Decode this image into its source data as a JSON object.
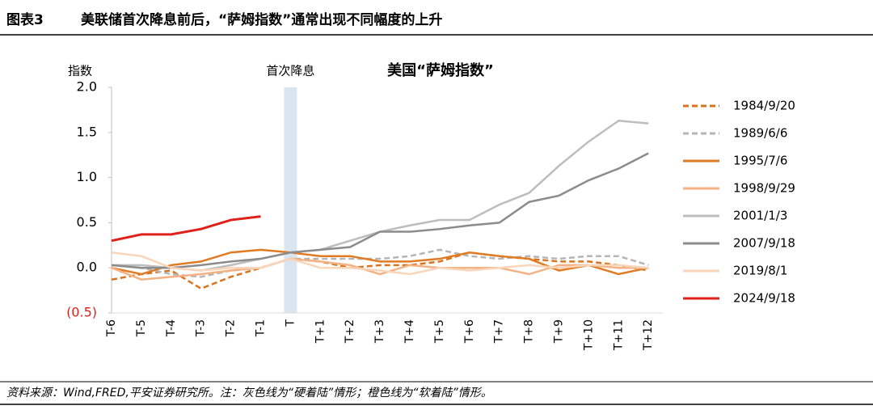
{
  "header": {
    "label": "图表3",
    "title": "美联储首次降息前后，“萨姆指数”通常出现不同幅度的上升"
  },
  "footer": "资料来源：Wind,FRED,平安证券研究所。注：灰色线为“硬着陆”情形；橙色线为“软着陆”情形。",
  "chart_data": {
    "type": "line",
    "title": "美国“萨姆指数”",
    "y_axis_label": "指数",
    "annotation": "首次降息",
    "annotation_category": "T",
    "categories": [
      "T-6",
      "T-5",
      "T-4",
      "T-3",
      "T-2",
      "T-1",
      "T",
      "T+1",
      "T+2",
      "T+3",
      "T+4",
      "T+5",
      "T+6",
      "T+7",
      "T+8",
      "T+9",
      "T+10",
      "T+11",
      "T+12"
    ],
    "ylim": [
      -0.5,
      2.0
    ],
    "yticks": [
      {
        "value": -0.5,
        "label": "(0.5)"
      },
      {
        "value": 0,
        "label": "0.0"
      },
      0.5,
      {
        "value": 1,
        "label": "1.0"
      },
      1.5,
      {
        "value": 2,
        "label": "2.0"
      }
    ],
    "legend": "right",
    "series": [
      {
        "name": "1984/9/20",
        "color": "#d9731e",
        "dashed": true,
        "values": [
          -0.13,
          -0.07,
          -0.03,
          -0.23,
          -0.1,
          0.0,
          0.1,
          0.07,
          0.0,
          0.03,
          0.03,
          0.07,
          0.17,
          0.13,
          0.1,
          0.07,
          0.07,
          0.03,
          -0.03
        ]
      },
      {
        "name": "1989/6/6",
        "color": "#b5b5b5",
        "dashed": true,
        "values": [
          0.03,
          0.0,
          -0.07,
          -0.1,
          -0.03,
          0.0,
          0.1,
          0.1,
          0.1,
          0.1,
          0.13,
          0.2,
          0.13,
          0.1,
          0.13,
          0.1,
          0.13,
          0.13,
          0.03
        ]
      },
      {
        "name": "1995/7/6",
        "color": "#e07b24",
        "values": [
          0.0,
          -0.07,
          0.03,
          0.07,
          0.17,
          0.2,
          0.17,
          0.13,
          0.13,
          0.07,
          0.07,
          0.1,
          0.17,
          0.13,
          0.1,
          -0.03,
          0.03,
          -0.07,
          0.0
        ]
      },
      {
        "name": "1998/9/29",
        "color": "#f4b183",
        "values": [
          0.0,
          -0.13,
          -0.1,
          -0.07,
          -0.03,
          0.0,
          0.1,
          0.07,
          0.03,
          -0.07,
          0.03,
          0.0,
          0.0,
          0.0,
          -0.07,
          0.03,
          0.03,
          0.0,
          0.0
        ]
      },
      {
        "name": "2001/1/3",
        "color": "#bdbdbd",
        "values": [
          0.03,
          0.03,
          0.0,
          -0.03,
          0.03,
          0.1,
          0.17,
          0.2,
          0.3,
          0.4,
          0.47,
          0.53,
          0.53,
          0.7,
          0.83,
          1.13,
          1.4,
          1.63,
          1.6
        ]
      },
      {
        "name": "2007/9/18",
        "color": "#8c8c8c",
        "values": [
          0.03,
          0.0,
          0.0,
          0.03,
          0.07,
          0.1,
          0.17,
          0.2,
          0.23,
          0.4,
          0.4,
          0.43,
          0.47,
          0.5,
          0.73,
          0.8,
          0.97,
          1.1,
          1.27
        ]
      },
      {
        "name": "2019/8/1",
        "color": "#f9d6b9",
        "values": [
          0.17,
          0.13,
          0.0,
          -0.03,
          0.0,
          0.0,
          0.1,
          0.0,
          0.0,
          -0.03,
          -0.07,
          0.0,
          -0.03,
          0.0,
          0.03,
          0.0,
          0.03,
          0.03,
          0.0
        ]
      },
      {
        "name": "2024/9/18",
        "color": "#e0201b",
        "values": [
          0.3,
          0.37,
          0.37,
          0.43,
          0.53,
          0.57,
          null,
          null,
          null,
          null,
          null,
          null,
          null,
          null,
          null,
          null,
          null,
          null,
          null
        ]
      }
    ]
  }
}
